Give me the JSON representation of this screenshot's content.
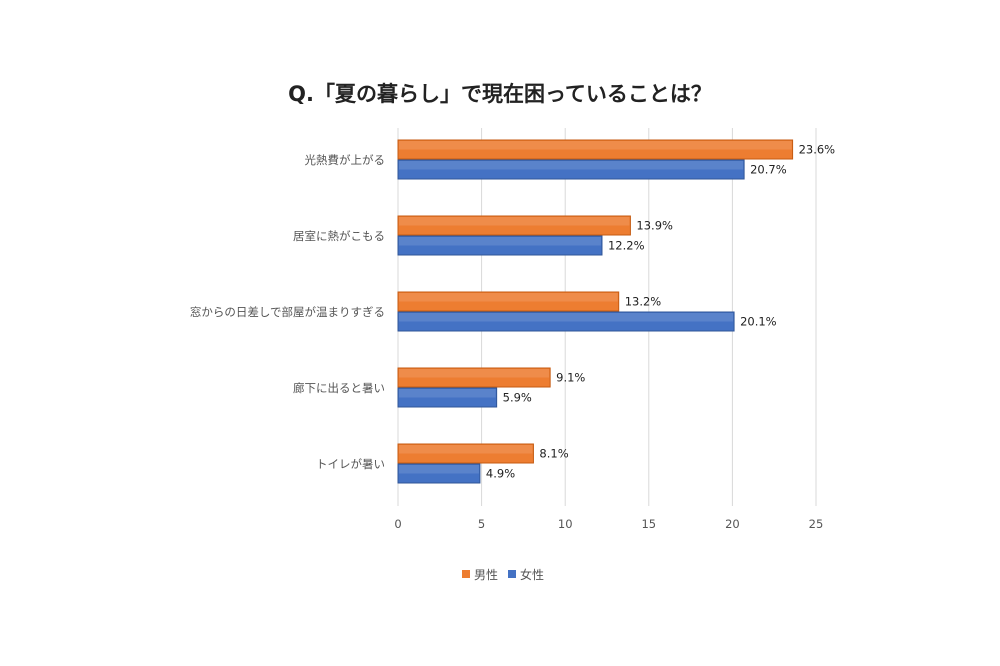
{
  "chart_data": {
    "type": "bar",
    "orientation": "horizontal",
    "title": "Q.「夏の暮らし」で現在困っていることは？",
    "categories": [
      "光熱費が上がる",
      "居室に熱がこもる",
      "窓からの日差しで部屋が温まりすぎる",
      "廊下に出ると暑い",
      "トイレが暑い"
    ],
    "series": [
      {
        "name": "男性",
        "color": "#ED7D31",
        "values": [
          23.6,
          13.9,
          13.2,
          9.1,
          8.1
        ],
        "labels": [
          "23.6%",
          "13.9%",
          "13.2%",
          "9.1%",
          "8.1%"
        ]
      },
      {
        "name": "女性",
        "color": "#4472C4",
        "values": [
          20.7,
          12.2,
          20.1,
          5.9,
          4.9
        ],
        "labels": [
          "20.7%",
          "12.2%",
          "20.1%",
          "5.9%",
          "4.9%"
        ]
      }
    ],
    "xlim": [
      0,
      25
    ],
    "xticks": [
      0,
      5,
      10,
      15,
      20,
      25
    ],
    "tick_labels": [
      "0",
      "5",
      "10",
      "15",
      "20",
      "25"
    ],
    "grid": true,
    "legend_position": "bottom"
  }
}
